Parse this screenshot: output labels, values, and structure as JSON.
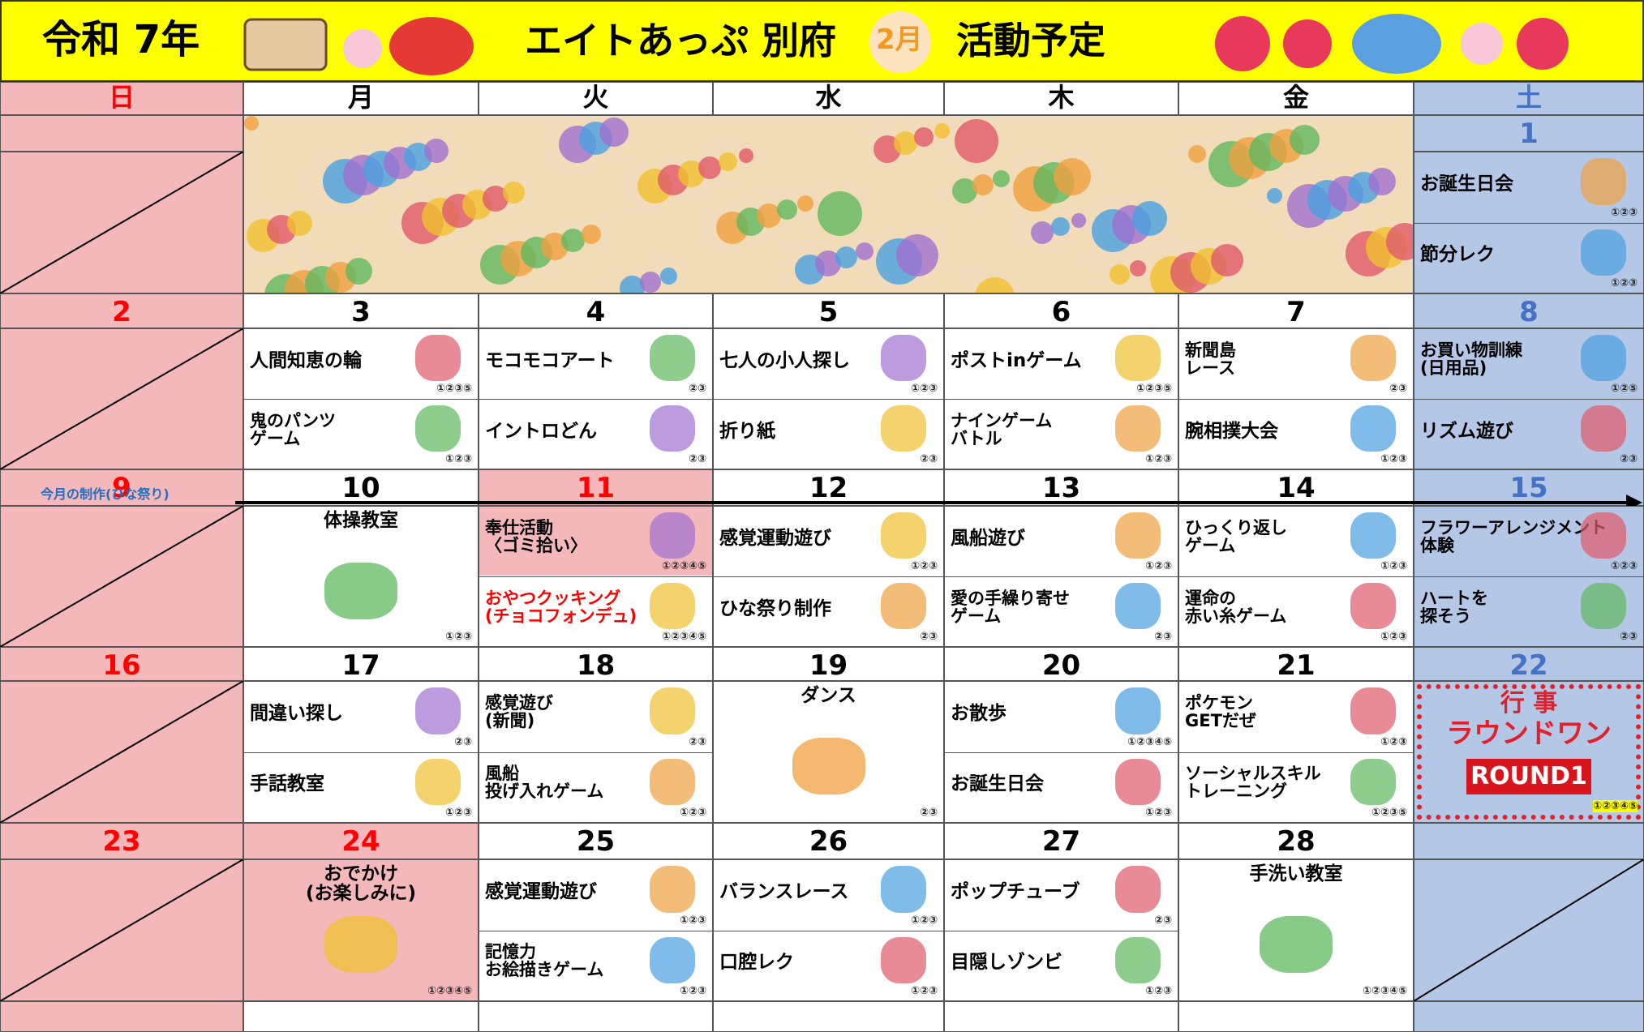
{
  "header": {
    "era": "令和 7年",
    "facility": "エイトあっぷ 別府",
    "month": "2月",
    "title": "活動予定"
  },
  "colors": {
    "sunday": "#f4b8bb",
    "saturday": "#b4c7e7",
    "header": "#ffff00",
    "sunday_text": "#ff0000",
    "saturday_text": "#4472c4"
  },
  "weekdays": [
    "日",
    "月",
    "火",
    "水",
    "木",
    "金",
    "土"
  ],
  "weeks": [
    {
      "dates": [
        null,
        null,
        null,
        null,
        null,
        null,
        1
      ],
      "days": [
        null,
        null,
        null,
        null,
        null,
        null,
        {
          "activities": [
            {
              "name": "お誕生日会",
              "note": "①②③"
            },
            {
              "name": "節分レク",
              "note": "①②③"
            }
          ]
        }
      ]
    },
    {
      "dates": [
        2,
        3,
        4,
        5,
        6,
        7,
        8
      ],
      "days": [
        null,
        {
          "activities": [
            {
              "name": "人間知恵の輪",
              "note": "①②③⑤"
            },
            {
              "name": "鬼のパンツ\nゲーム",
              "note": "①②③"
            }
          ]
        },
        {
          "activities": [
            {
              "name": "モコモコアート",
              "note": "②③"
            },
            {
              "name": "イントロどん",
              "note": "②③"
            }
          ]
        },
        {
          "activities": [
            {
              "name": "七人の小人探し",
              "note": "①②③"
            },
            {
              "name": "折り紙",
              "note": "②③"
            }
          ]
        },
        {
          "activities": [
            {
              "name": "ポストinゲーム",
              "note": "①②③⑤"
            },
            {
              "name": "ナインゲーム\nバトル",
              "note": "①②③"
            }
          ]
        },
        {
          "activities": [
            {
              "name": "新聞島\nレース",
              "note": "②③"
            },
            {
              "name": "腕相撲大会",
              "note": "①②③"
            }
          ]
        },
        {
          "activities": [
            {
              "name": "お買い物訓練\n(日用品)",
              "note": "①②⑤"
            },
            {
              "name": "リズム遊び",
              "note": "②③"
            }
          ]
        }
      ]
    },
    {
      "dates": [
        9,
        10,
        11,
        12,
        13,
        14,
        15
      ],
      "highlight": [
        2
      ],
      "production": "今月の制作(ひな祭り)",
      "days": [
        null,
        {
          "activities": [
            {
              "name": "体操教室",
              "note": "①②③"
            }
          ]
        },
        {
          "activities": [
            {
              "name": "奉仕活動\n〈ゴミ拾い〉",
              "note": "①②③④⑤",
              "background": "#f4b8bb"
            },
            {
              "name": "おやつクッキング\n(チョコフォンデュ)",
              "note": "①②③④⑤",
              "color": "#ff0000"
            }
          ]
        },
        {
          "activities": [
            {
              "name": "感覚運動遊び",
              "note": "①②③"
            },
            {
              "name": "ひな祭り制作",
              "note": "②③"
            }
          ]
        },
        {
          "activities": [
            {
              "name": "風船遊び",
              "note": "①②③"
            },
            {
              "name": "愛の手繰り寄せ\nゲーム",
              "note": "②③"
            }
          ]
        },
        {
          "activities": [
            {
              "name": "ひっくり返し\nゲーム",
              "note": "①②③"
            },
            {
              "name": "運命の\n赤い糸ゲーム",
              "note": "①②③"
            }
          ]
        },
        {
          "activities": [
            {
              "name": "フラワーアレンジメント\n体験",
              "note": "①②③"
            },
            {
              "name": "ハートを\n探そう",
              "note": "②③"
            }
          ]
        }
      ]
    },
    {
      "dates": [
        16,
        17,
        18,
        19,
        20,
        21,
        22
      ],
      "days": [
        null,
        {
          "activities": [
            {
              "name": "間違い探し",
              "note": "②③"
            },
            {
              "name": "手話教室",
              "note": "①②③"
            }
          ]
        },
        {
          "activities": [
            {
              "name": "感覚遊び\n(新聞)",
              "note": "②③"
            },
            {
              "name": "風船\n投げ入れゲーム",
              "note": "①②③"
            }
          ]
        },
        {
          "activities": [
            {
              "name": "ダンス",
              "note": "②③"
            }
          ]
        },
        {
          "activities": [
            {
              "name": "お散歩",
              "note": "①②③④⑤"
            },
            {
              "name": "お誕生日会",
              "note": "①②③"
            }
          ]
        },
        {
          "activities": [
            {
              "name": "ポケモン\nGETだぜ",
              "note": "①②③"
            },
            {
              "name": "ソーシャルスキル\nトレーニング",
              "note": "①②③⑤"
            }
          ]
        },
        {
          "event": "行 事",
          "name": "ラウンドワン",
          "logo": "ROUND1",
          "note": "①②③④⑤"
        }
      ]
    },
    {
      "dates": [
        23,
        24,
        25,
        26,
        27,
        28,
        null
      ],
      "highlight": [
        1
      ],
      "days": [
        null,
        {
          "background": "#f4b8bb",
          "activities": [
            {
              "name": "おでかけ\n(お楽しみに)",
              "note": "①②③④⑤"
            }
          ]
        },
        {
          "activities": [
            {
              "name": "感覚運動遊び",
              "note": "①②③"
            },
            {
              "name": "記憶力\nお絵描きゲーム",
              "note": "①②③"
            }
          ]
        },
        {
          "activities": [
            {
              "name": "バランスレース",
              "note": "①②③"
            },
            {
              "name": "口腔レク",
              "note": "①②③"
            }
          ]
        },
        {
          "activities": [
            {
              "name": "ポップチューブ",
              "note": "②③"
            },
            {
              "name": "目隠しゾンビ",
              "note": "①②③"
            }
          ]
        },
        {
          "activities": [
            {
              "name": "手洗い教室",
              "note": "①②③④⑤"
            }
          ]
        },
        null
      ]
    }
  ]
}
